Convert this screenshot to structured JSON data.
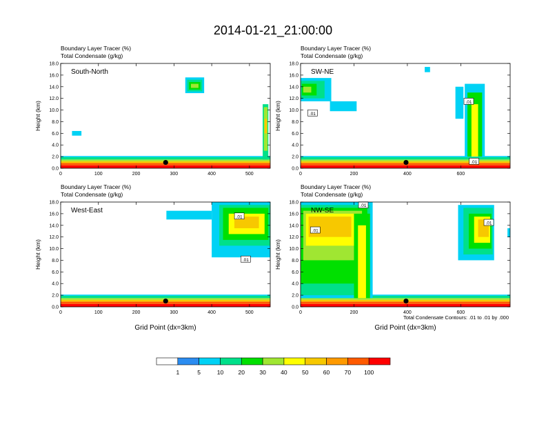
{
  "figure_title": "2014-01-21_21:00:00",
  "colorbar": {
    "levels": [
      "1",
      "5",
      "10",
      "20",
      "30",
      "40",
      "50",
      "60",
      "70",
      "100"
    ],
    "colors": [
      "#ffffff",
      "#2b8cf0",
      "#00d2f5",
      "#00e08a",
      "#00e000",
      "#a0e632",
      "#ffff00",
      "#f7c800",
      "#ff9a00",
      "#ff5a00",
      "#ff0000"
    ]
  },
  "contour_note": "Total Condensate Contours: .01 to .01 by .000",
  "chart_data": [
    {
      "type": "heatmap",
      "subtitle_line1": "Boundary Layer Tracer   (%)",
      "subtitle_line2": "Total Condensate   (g/kg)",
      "panel_label": "South-North",
      "ylabel": "Height (km)",
      "xlabel": "",
      "ylim": [
        0,
        18
      ],
      "xlim": [
        0,
        555
      ],
      "yticks": [
        "0.0",
        "2.0",
        "4.0",
        "6.0",
        "8.0",
        "10.0",
        "12.0",
        "14.0",
        "16.0",
        "18.0"
      ],
      "xticks": [
        {
          "v": 0,
          "label": "0"
        },
        {
          "v": 100,
          "label": "100"
        },
        {
          "v": 200,
          "label": "200"
        },
        {
          "v": 300,
          "label": "300"
        },
        {
          "v": 400,
          "label": "400"
        },
        {
          "v": 500,
          "label": "500"
        }
      ],
      "marker": {
        "x": 278,
        "y": 1.0
      },
      "contour_labels": [],
      "cells": [
        {
          "x0": 0,
          "x1": 555,
          "y0": 0,
          "y1": 0.5,
          "v": 100
        },
        {
          "x0": 0,
          "x1": 555,
          "y0": 0.5,
          "y1": 0.9,
          "v": 70
        },
        {
          "x0": 0,
          "x1": 555,
          "y0": 0.9,
          "y1": 1.2,
          "v": 50
        },
        {
          "x0": 0,
          "x1": 555,
          "y0": 1.2,
          "y1": 1.5,
          "v": 30
        },
        {
          "x0": 0,
          "x1": 555,
          "y0": 1.5,
          "y1": 1.9,
          "v": 10
        },
        {
          "x0": 0,
          "x1": 555,
          "y0": 1.9,
          "y1": 2.1,
          "v": 5
        },
        {
          "x0": 30,
          "x1": 55,
          "y0": 5.6,
          "y1": 6.4,
          "v": 5
        },
        {
          "x0": 330,
          "x1": 380,
          "y0": 12.9,
          "y1": 15.6,
          "v": 5
        },
        {
          "x0": 335,
          "x1": 375,
          "y0": 13.2,
          "y1": 15.2,
          "v": 10
        },
        {
          "x0": 340,
          "x1": 370,
          "y0": 13.5,
          "y1": 14.8,
          "v": 20
        },
        {
          "x0": 345,
          "x1": 365,
          "y0": 13.8,
          "y1": 14.5,
          "v": 30
        },
        {
          "x0": 535,
          "x1": 550,
          "y0": 1.5,
          "y1": 11.0,
          "v": 10
        },
        {
          "x0": 538,
          "x1": 548,
          "y0": 3.0,
          "y1": 10.5,
          "v": 30
        },
        {
          "x0": 540,
          "x1": 546,
          "y0": 6.0,
          "y1": 8.5,
          "v": 50
        }
      ]
    },
    {
      "type": "heatmap",
      "subtitle_line1": "Boundary Layer Tracer   (%)",
      "subtitle_line2": "Total Condensate   (g/kg)",
      "panel_label": "SW-NE",
      "ylabel": "Height (km)",
      "xlabel": "",
      "ylim": [
        0,
        18
      ],
      "xlim": [
        0,
        785
      ],
      "yticks": [
        "0.0",
        "2.0",
        "4.0",
        "6.0",
        "8.0",
        "10.0",
        "12.0",
        "14.0",
        "16.0",
        "18.0"
      ],
      "xticks": [
        {
          "v": 0,
          "label": "0"
        },
        {
          "v": 200,
          "label": "200"
        },
        {
          "v": 400,
          "label": "400"
        },
        {
          "v": 600,
          "label": "600"
        }
      ],
      "marker": {
        "x": 395,
        "y": 1.0
      },
      "contour_labels": [
        {
          "x": 45,
          "y": 9.5,
          "label": ".01"
        },
        {
          "x": 630,
          "y": 11.5,
          "label": ".01"
        },
        {
          "x": 650,
          "y": 1.2,
          "label": ".01"
        }
      ],
      "cells": [
        {
          "x0": 0,
          "x1": 785,
          "y0": 0,
          "y1": 0.5,
          "v": 100
        },
        {
          "x0": 0,
          "x1": 785,
          "y0": 0.5,
          "y1": 0.9,
          "v": 70
        },
        {
          "x0": 0,
          "x1": 785,
          "y0": 0.9,
          "y1": 1.2,
          "v": 50
        },
        {
          "x0": 0,
          "x1": 785,
          "y0": 1.2,
          "y1": 1.5,
          "v": 30
        },
        {
          "x0": 0,
          "x1": 785,
          "y0": 1.5,
          "y1": 1.9,
          "v": 10
        },
        {
          "x0": 0,
          "x1": 785,
          "y0": 1.9,
          "y1": 2.1,
          "v": 5
        },
        {
          "x0": 0,
          "x1": 115,
          "y0": 11.5,
          "y1": 15.5,
          "v": 5
        },
        {
          "x0": 0,
          "x1": 90,
          "y0": 12.0,
          "y1": 15.0,
          "v": 10
        },
        {
          "x0": 5,
          "x1": 60,
          "y0": 12.5,
          "y1": 14.5,
          "v": 20
        },
        {
          "x0": 10,
          "x1": 40,
          "y0": 13.0,
          "y1": 14.0,
          "v": 30
        },
        {
          "x0": 110,
          "x1": 210,
          "y0": 9.8,
          "y1": 11.5,
          "v": 5
        },
        {
          "x0": 465,
          "x1": 485,
          "y0": 16.5,
          "y1": 17.4,
          "v": 5
        },
        {
          "x0": 580,
          "x1": 610,
          "y0": 8.5,
          "y1": 14.0,
          "v": 5
        },
        {
          "x0": 615,
          "x1": 690,
          "y0": 2.0,
          "y1": 14.5,
          "v": 5
        },
        {
          "x0": 625,
          "x1": 680,
          "y0": 2.0,
          "y1": 13.0,
          "v": 20
        },
        {
          "x0": 640,
          "x1": 665,
          "y0": 2.0,
          "y1": 11.0,
          "v": 40
        }
      ]
    },
    {
      "type": "heatmap",
      "subtitle_line1": "Boundary Layer Tracer   (%)",
      "subtitle_line2": "Total Condensate   (g/kg)",
      "panel_label": "West-East",
      "ylabel": "Height (km)",
      "xlabel": "Grid Point (dx=3km)",
      "ylim": [
        0,
        18
      ],
      "xlim": [
        0,
        555
      ],
      "yticks": [
        "0.0",
        "2.0",
        "4.0",
        "6.0",
        "8.0",
        "10.0",
        "12.0",
        "14.0",
        "16.0",
        "18.0"
      ],
      "xticks": [
        {
          "v": 0,
          "label": "0"
        },
        {
          "v": 100,
          "label": "100"
        },
        {
          "v": 200,
          "label": "200"
        },
        {
          "v": 300,
          "label": "300"
        },
        {
          "v": 400,
          "label": "400"
        },
        {
          "v": 500,
          "label": "500"
        }
      ],
      "marker": {
        "x": 278,
        "y": 1.0
      },
      "contour_labels": [
        {
          "x": 473,
          "y": 15.6,
          "label": ".01"
        },
        {
          "x": 490,
          "y": 8.2,
          "label": ".01"
        }
      ],
      "cells": [
        {
          "x0": 0,
          "x1": 555,
          "y0": 0,
          "y1": 0.5,
          "v": 100
        },
        {
          "x0": 0,
          "x1": 555,
          "y0": 0.5,
          "y1": 0.9,
          "v": 70
        },
        {
          "x0": 0,
          "x1": 555,
          "y0": 0.9,
          "y1": 1.2,
          "v": 50
        },
        {
          "x0": 0,
          "x1": 555,
          "y0": 1.2,
          "y1": 1.5,
          "v": 30
        },
        {
          "x0": 0,
          "x1": 555,
          "y0": 1.5,
          "y1": 1.9,
          "v": 10
        },
        {
          "x0": 0,
          "x1": 555,
          "y0": 1.9,
          "y1": 2.1,
          "v": 5
        },
        {
          "x0": 280,
          "x1": 400,
          "y0": 15.0,
          "y1": 16.5,
          "v": 5
        },
        {
          "x0": 400,
          "x1": 555,
          "y0": 8.5,
          "y1": 18.0,
          "v": 5
        },
        {
          "x0": 420,
          "x1": 555,
          "y0": 10.5,
          "y1": 17.5,
          "v": 10
        },
        {
          "x0": 430,
          "x1": 550,
          "y0": 11.5,
          "y1": 17.0,
          "v": 20
        },
        {
          "x0": 445,
          "x1": 540,
          "y0": 12.5,
          "y1": 16.0,
          "v": 40
        },
        {
          "x0": 460,
          "x1": 525,
          "y0": 13.5,
          "y1": 15.5,
          "v": 50
        }
      ]
    },
    {
      "type": "heatmap",
      "subtitle_line1": "Boundary Layer Tracer   (%)",
      "subtitle_line2": "Total Condensate   (g/kg)",
      "panel_label": "NW-SE",
      "ylabel": "Height (km)",
      "xlabel": "Grid Point (dx=3km)",
      "ylim": [
        0,
        18
      ],
      "xlim": [
        0,
        785
      ],
      "yticks": [
        "0.0",
        "2.0",
        "4.0",
        "6.0",
        "8.0",
        "10.0",
        "12.0",
        "14.0",
        "16.0",
        "18.0"
      ],
      "xticks": [
        {
          "v": 0,
          "label": "0"
        },
        {
          "v": 200,
          "label": "200"
        },
        {
          "v": 400,
          "label": "400"
        },
        {
          "v": 600,
          "label": "600"
        }
      ],
      "marker": {
        "x": 395,
        "y": 1.0
      },
      "contour_labels": [
        {
          "x": 55,
          "y": 13.2,
          "label": ".01"
        },
        {
          "x": 235,
          "y": 17.5,
          "label": ".01"
        },
        {
          "x": 705,
          "y": 14.5,
          "label": ".01"
        }
      ],
      "cells": [
        {
          "x0": 0,
          "x1": 785,
          "y0": 0,
          "y1": 0.5,
          "v": 100
        },
        {
          "x0": 0,
          "x1": 785,
          "y0": 0.5,
          "y1": 0.9,
          "v": 70
        },
        {
          "x0": 0,
          "x1": 785,
          "y0": 0.9,
          "y1": 1.2,
          "v": 50
        },
        {
          "x0": 0,
          "x1": 785,
          "y0": 1.2,
          "y1": 1.5,
          "v": 30
        },
        {
          "x0": 0,
          "x1": 785,
          "y0": 1.5,
          "y1": 1.9,
          "v": 10
        },
        {
          "x0": 0,
          "x1": 785,
          "y0": 1.9,
          "y1": 2.1,
          "v": 5
        },
        {
          "x0": 0,
          "x1": 270,
          "y0": 1.5,
          "y1": 18.0,
          "v": 5
        },
        {
          "x0": 0,
          "x1": 260,
          "y0": 2.0,
          "y1": 17.5,
          "v": 10
        },
        {
          "x0": 0,
          "x1": 250,
          "y0": 4.0,
          "y1": 17.0,
          "v": 20
        },
        {
          "x0": 10,
          "x1": 230,
          "y0": 8.0,
          "y1": 16.5,
          "v": 30
        },
        {
          "x0": 20,
          "x1": 210,
          "y0": 10.5,
          "y1": 16.0,
          "v": 40
        },
        {
          "x0": 30,
          "x1": 190,
          "y0": 12.0,
          "y1": 15.5,
          "v": 50
        },
        {
          "x0": 200,
          "x1": 260,
          "y0": 1.5,
          "y1": 16.0,
          "v": 20
        },
        {
          "x0": 215,
          "x1": 245,
          "y0": 1.5,
          "y1": 14.0,
          "v": 40
        },
        {
          "x0": 590,
          "x1": 725,
          "y0": 8.0,
          "y1": 17.5,
          "v": 5
        },
        {
          "x0": 610,
          "x1": 720,
          "y0": 9.0,
          "y1": 17.0,
          "v": 10
        },
        {
          "x0": 630,
          "x1": 715,
          "y0": 10.0,
          "y1": 16.0,
          "v": 20
        },
        {
          "x0": 650,
          "x1": 710,
          "y0": 11.0,
          "y1": 15.5,
          "v": 40
        },
        {
          "x0": 665,
          "x1": 705,
          "y0": 12.0,
          "y1": 15.0,
          "v": 50
        },
        {
          "x0": 775,
          "x1": 785,
          "y0": 12.0,
          "y1": 13.5,
          "v": 5
        }
      ]
    }
  ]
}
